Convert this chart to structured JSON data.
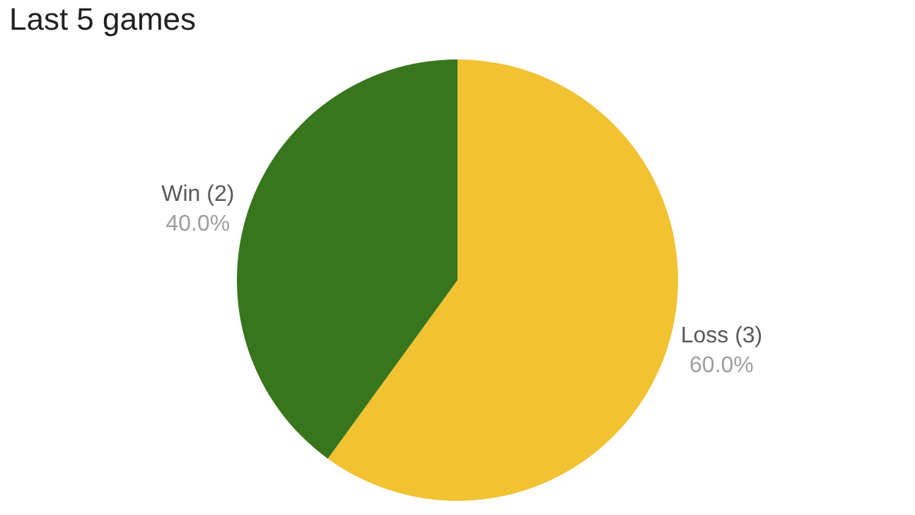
{
  "chart_data": {
    "type": "pie",
    "title": "Last 5 games",
    "categories": [
      "Loss (3)",
      "Win (2)"
    ],
    "values": [
      60,
      40
    ],
    "value_labels": [
      "60.0%",
      "40.0%"
    ],
    "colors": [
      "#f1c232",
      "#38761d"
    ],
    "legend": false
  }
}
